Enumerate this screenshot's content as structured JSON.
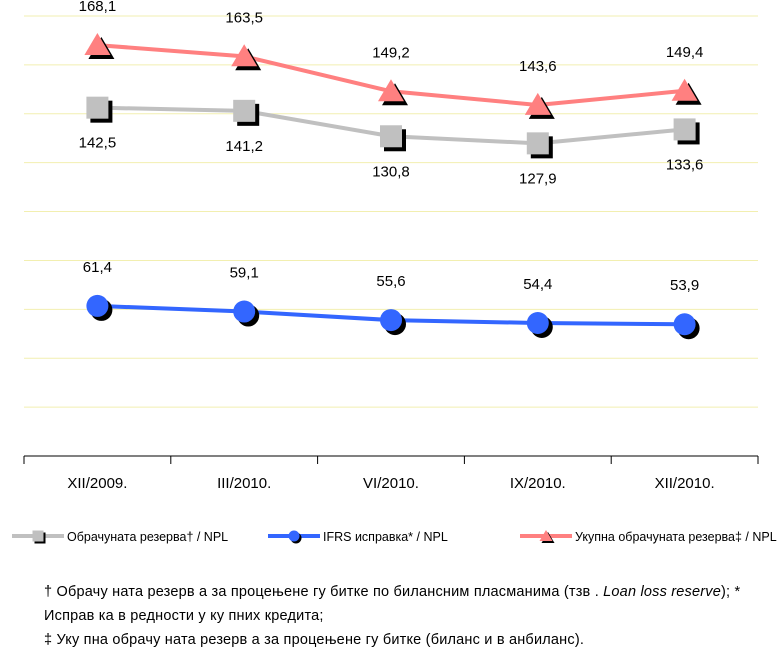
{
  "chart_data": {
    "type": "line",
    "categories": [
      "XII/2009.",
      "III/2010.",
      "VI/2010.",
      "IX/2010.",
      "XII/2010."
    ],
    "series": [
      {
        "name": "Обрачуната резерва† / NPL",
        "values": [
          142.5,
          141.2,
          130.8,
          127.9,
          133.6
        ],
        "labels": [
          "142,5",
          "141,2",
          "130,8",
          "127,9",
          "133,6"
        ],
        "color": "#c0c0c0",
        "marker": "square",
        "label_position": "below"
      },
      {
        "name": "IFRS исправка* / NPL",
        "values": [
          61.4,
          59.1,
          55.6,
          54.4,
          53.9
        ],
        "labels": [
          "61,4",
          "59,1",
          "55,6",
          "54,4",
          "53,9"
        ],
        "color": "#3366ff",
        "marker": "circle",
        "label_position": "above"
      },
      {
        "name": "Укупна обрачуната резерва‡ / NPL",
        "values": [
          168.1,
          163.5,
          149.2,
          143.6,
          149.4
        ],
        "labels": [
          "168,1",
          "163,5",
          "149,2",
          "143,6",
          "149,4"
        ],
        "color": "#ff8080",
        "marker": "triangle",
        "label_position": "above"
      }
    ],
    "ylim": [
      0,
      180
    ],
    "grid": true,
    "legend": "bottom"
  },
  "footnotes": {
    "dagger_text": "† Обрачу ната резерв а за процењене гу битке по билансним пласманима (тзв . ",
    "dagger_italic": "Loan loss reserve",
    "dagger_text2": "); ",
    "star_text": "* Исправ ка в редности у ку пних кредита;",
    "ddagger_text": "‡ Уку пна обрачу ната резерв а за процењене гу битке (биланс и в анбиланс)."
  }
}
